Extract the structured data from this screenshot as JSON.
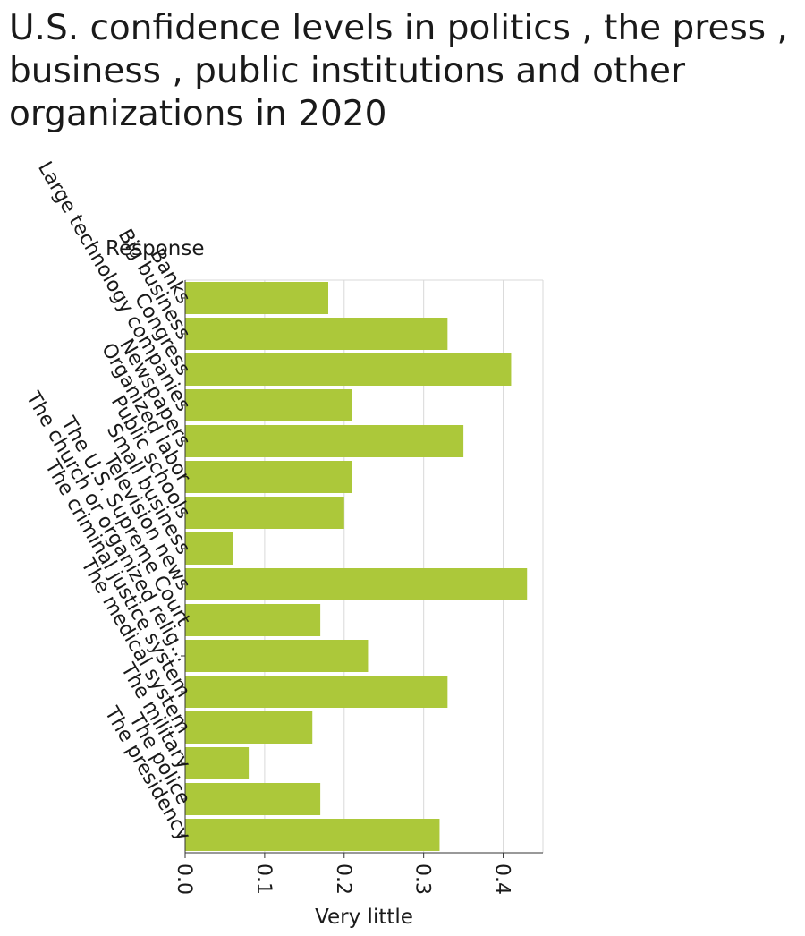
{
  "chart_data": {
    "type": "bar",
    "orientation": "horizontal",
    "title": "U.S. confidence levels in politics , the press , business , public institutions and other organizations in 2020",
    "xlabel": "Very little",
    "ylabel": "Response",
    "xlim": [
      0,
      0.45
    ],
    "xticks": [
      0.0,
      0.1,
      0.2,
      0.3,
      0.4
    ],
    "xtick_labels": [
      "0.0",
      "0.1",
      "0.2",
      "0.3",
      "0.4"
    ],
    "grid": "vertical",
    "bar_color": "#acc83a",
    "categories": [
      "Banks",
      "Big business",
      "Congress",
      "Large technology companies",
      "Newspapers",
      "Organized labor",
      "Public schools",
      "Small business",
      "Television news",
      "The U.S. Supreme Court",
      "The church or organized relig...",
      "The criminal justice system",
      "The medical system",
      "The military",
      "The police",
      "The presidency"
    ],
    "values": [
      0.18,
      0.33,
      0.41,
      0.21,
      0.35,
      0.21,
      0.2,
      0.06,
      0.43,
      0.17,
      0.23,
      0.33,
      0.16,
      0.08,
      0.17,
      0.32
    ]
  }
}
